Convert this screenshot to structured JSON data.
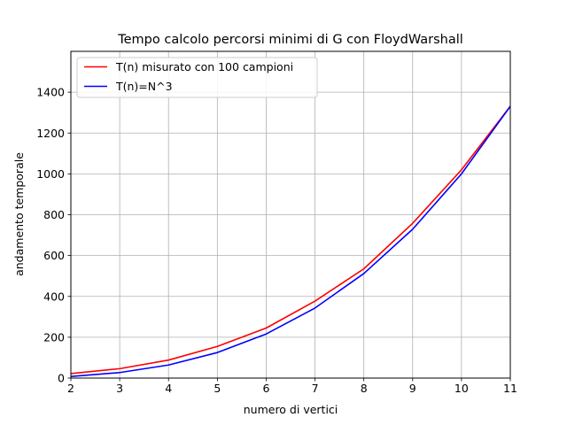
{
  "chart_data": {
    "type": "line",
    "title": "Tempo calcolo percorsi minimi di G con FloydWarshall",
    "xlabel": "numero di vertici",
    "ylabel": "andamento temporale",
    "xlim": [
      2,
      11
    ],
    "ylim": [
      0,
      1600
    ],
    "xticks": [
      2,
      3,
      4,
      5,
      6,
      7,
      8,
      9,
      10,
      11
    ],
    "yticks": [
      0,
      200,
      400,
      600,
      800,
      1000,
      1200,
      1400
    ],
    "grid": true,
    "legend_position": "top-left",
    "x": [
      2,
      3,
      4,
      5,
      6,
      7,
      8,
      9,
      10,
      11
    ],
    "series": [
      {
        "name": "T(n) misurato con 100 campioni",
        "color": "#ff0000",
        "values": [
          22,
          46,
          88,
          155,
          245,
          377,
          535,
          758,
          1020,
          1331
        ]
      },
      {
        "name": "T(n)=N^3",
        "color": "#0000ff",
        "values": [
          8,
          27,
          64,
          125,
          216,
          343,
          512,
          729,
          1000,
          1331
        ]
      }
    ]
  }
}
